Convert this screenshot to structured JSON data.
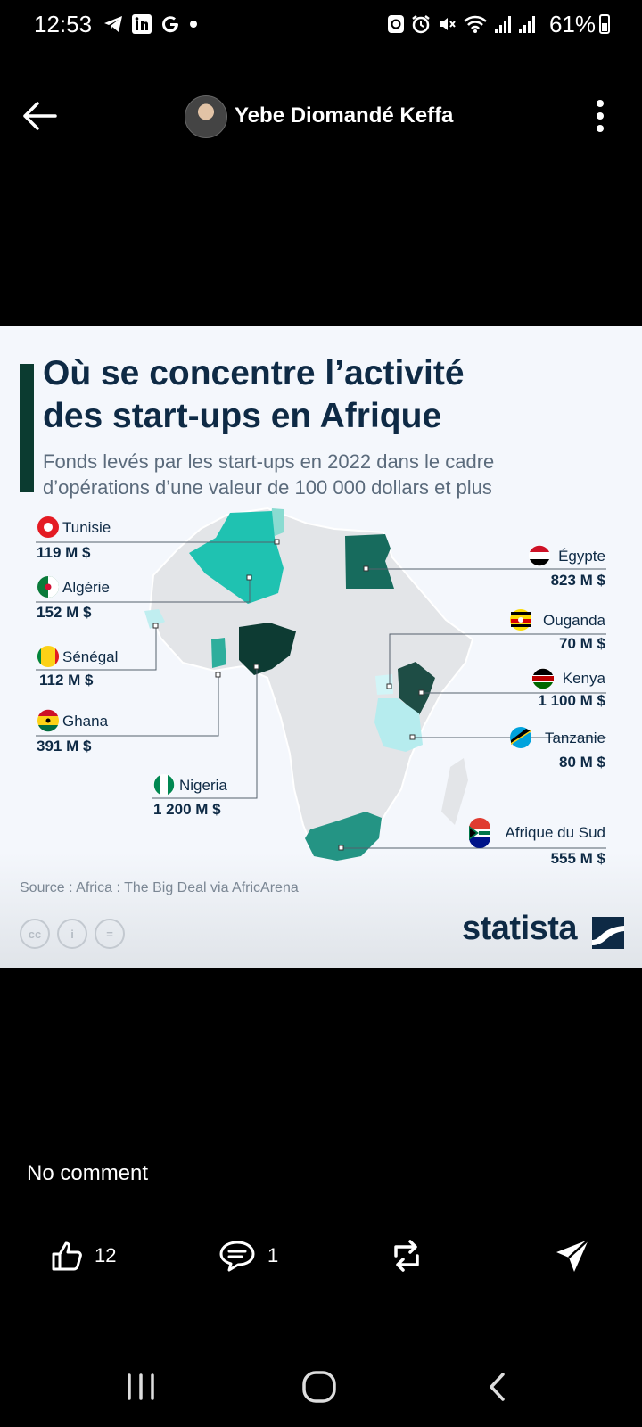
{
  "status_bar": {
    "time": "12:53",
    "battery": "61%"
  },
  "header": {
    "author": "Yebe Diomandé Keffa"
  },
  "infographic": {
    "title_line1": "Où se concentre l’activité",
    "title_line2": "des start-ups en Afrique",
    "subtitle_line1": "Fonds levés par les start-ups en 2022 dans le cadre",
    "subtitle_line2": "d’opérations d’une valeur de 100 000 dollars et plus",
    "source": "Source : Africa : The Big Deal via AfricArena",
    "brand": "statista",
    "countries": [
      {
        "name": "Tunisie",
        "value": "119 M $",
        "color": "#8adbd1"
      },
      {
        "name": "Algérie",
        "value": "152 M $",
        "color": "#1fc2b1"
      },
      {
        "name": "Sénégal",
        "value": "112 M $",
        "color": "#c0eef0"
      },
      {
        "name": "Ghana",
        "value": "391 M $",
        "color": "#2eae9c"
      },
      {
        "name": "Nigeria",
        "value": "1 200 M $",
        "color": "#0d3b33"
      },
      {
        "name": "Égypte",
        "value": "823 M $",
        "color": "#176b5d"
      },
      {
        "name": "Ouganda",
        "value": "70 M $",
        "color": "#d2f5f7"
      },
      {
        "name": "Kenya",
        "value": "1 100 M $",
        "color": "#1e4d45"
      },
      {
        "name": "Tanzanie",
        "value": "80 M $",
        "color": "#b6ecee"
      },
      {
        "name": "Afrique du Sud",
        "value": "555 M $",
        "color": "#249484"
      }
    ]
  },
  "comments": {
    "empty_label": "No comment"
  },
  "actions": {
    "likes": "12",
    "comments": "1"
  }
}
